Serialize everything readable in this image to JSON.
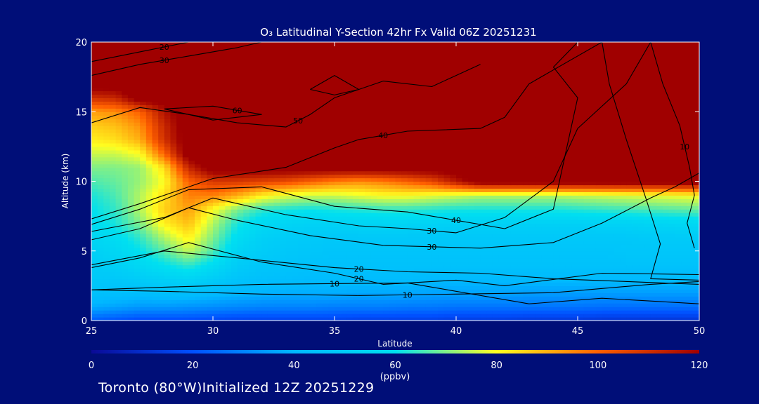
{
  "chart_data": {
    "type": "heatmap",
    "title": "O₃ Latitudinal Y-Section 42hr  Fx Valid 06Z 20251231",
    "xlabel": "Latitude",
    "ylabel": "Altitude (km)",
    "xlim": [
      25,
      50
    ],
    "ylim": [
      0,
      20
    ],
    "x_ticks": [
      "25",
      "30",
      "35",
      "40",
      "45",
      "50"
    ],
    "y_ticks": [
      "0",
      "5",
      "10",
      "15",
      "20"
    ],
    "colorbar": {
      "unit": "(ppbv)",
      "range": [
        0,
        120
      ],
      "ticks": [
        "0",
        "20",
        "40",
        "60",
        "80",
        "100",
        "120"
      ],
      "colors": [
        "#0a0a96",
        "#0050ff",
        "#00b8ff",
        "#00e0f0",
        "#ffff20",
        "#ff6000",
        "#a00000"
      ]
    },
    "altitude_km": [
      0,
      1,
      2,
      3,
      4,
      5,
      6,
      7,
      8,
      9,
      10,
      11,
      12,
      13,
      14,
      15,
      16,
      17,
      18,
      19,
      20
    ],
    "latitude": [
      25,
      26,
      27,
      28,
      29,
      30,
      31,
      32,
      33,
      34,
      35,
      36,
      37,
      38,
      39,
      40,
      41,
      42,
      43,
      44,
      45,
      46,
      47,
      48,
      49,
      50
    ],
    "ozone_ppbv": [
      [
        22,
        20,
        18,
        18,
        18,
        17,
        16,
        16,
        16,
        16,
        16,
        15,
        15,
        15,
        15,
        14,
        14,
        14,
        13,
        13,
        13,
        12,
        12,
        12,
        12,
        12
      ],
      [
        38,
        36,
        34,
        34,
        33,
        32,
        31,
        30,
        30,
        30,
        29,
        29,
        29,
        28,
        28,
        27,
        27,
        27,
        27,
        27,
        27,
        26,
        26,
        26,
        26,
        26
      ],
      [
        45,
        44,
        43,
        44,
        44,
        42,
        40,
        39,
        38,
        38,
        38,
        37,
        37,
        37,
        36,
        36,
        36,
        36,
        35,
        35,
        35,
        35,
        35,
        35,
        35,
        35
      ],
      [
        48,
        48,
        50,
        52,
        54,
        50,
        46,
        44,
        43,
        42,
        42,
        42,
        42,
        42,
        41,
        41,
        41,
        41,
        41,
        41,
        41,
        41,
        41,
        41,
        41,
        41
      ],
      [
        50,
        52,
        56,
        60,
        64,
        58,
        50,
        47,
        46,
        45,
        45,
        45,
        45,
        45,
        45,
        45,
        45,
        45,
        45,
        45,
        45,
        45,
        45,
        45,
        45,
        45
      ],
      [
        52,
        55,
        60,
        67,
        75,
        66,
        54,
        50,
        48,
        47,
        46,
        46,
        46,
        46,
        46,
        46,
        46,
        46,
        46,
        46,
        46,
        46,
        47,
        47,
        47,
        47
      ],
      [
        55,
        58,
        64,
        74,
        82,
        70,
        58,
        52,
        50,
        49,
        48,
        48,
        48,
        48,
        48,
        48,
        48,
        48,
        48,
        48,
        48,
        48,
        48,
        49,
        49,
        50
      ],
      [
        58,
        62,
        70,
        82,
        88,
        74,
        62,
        56,
        54,
        53,
        53,
        54,
        54,
        54,
        53,
        52,
        52,
        52,
        52,
        52,
        52,
        53,
        53,
        54,
        55,
        56
      ],
      [
        60,
        64,
        74,
        86,
        92,
        80,
        70,
        64,
        62,
        61,
        62,
        63,
        64,
        64,
        63,
        62,
        62,
        62,
        62,
        62,
        63,
        64,
        65,
        66,
        67,
        68
      ],
      [
        62,
        66,
        74,
        84,
        96,
        96,
        90,
        82,
        78,
        76,
        76,
        78,
        80,
        80,
        78,
        76,
        74,
        74,
        74,
        74,
        75,
        76,
        77,
        78,
        79,
        80
      ],
      [
        66,
        68,
        72,
        80,
        100,
        108,
        108,
        106,
        104,
        100,
        96,
        94,
        96,
        100,
        105,
        115,
        125,
        125,
        125,
        125,
        125,
        125,
        125,
        125,
        125,
        125
      ],
      [
        70,
        70,
        72,
        84,
        112,
        125,
        125,
        125,
        125,
        125,
        125,
        125,
        125,
        125,
        125,
        125,
        125,
        125,
        125,
        125,
        125,
        125,
        125,
        125,
        125,
        125
      ],
      [
        76,
        76,
        80,
        100,
        125,
        125,
        125,
        125,
        125,
        125,
        125,
        125,
        125,
        125,
        125,
        125,
        125,
        125,
        125,
        125,
        125,
        125,
        125,
        125,
        125,
        125
      ],
      [
        82,
        84,
        90,
        110,
        125,
        125,
        125,
        125,
        125,
        125,
        125,
        125,
        125,
        125,
        125,
        125,
        125,
        125,
        125,
        125,
        125,
        125,
        125,
        125,
        125,
        125
      ],
      [
        86,
        88,
        94,
        112,
        125,
        125,
        125,
        125,
        125,
        125,
        125,
        125,
        125,
        125,
        125,
        125,
        125,
        125,
        125,
        125,
        125,
        125,
        125,
        125,
        125,
        125
      ],
      [
        92,
        94,
        100,
        116,
        125,
        125,
        125,
        125,
        125,
        125,
        125,
        125,
        125,
        125,
        125,
        125,
        125,
        125,
        125,
        125,
        125,
        125,
        125,
        125,
        125,
        125
      ],
      [
        110,
        112,
        125,
        125,
        125,
        125,
        125,
        125,
        125,
        125,
        125,
        125,
        125,
        125,
        125,
        125,
        125,
        125,
        125,
        125,
        125,
        125,
        125,
        125,
        125,
        125
      ],
      [
        125,
        125,
        125,
        125,
        125,
        125,
        125,
        125,
        125,
        125,
        125,
        125,
        125,
        125,
        125,
        125,
        125,
        125,
        125,
        125,
        125,
        125,
        125,
        125,
        125,
        125
      ],
      [
        125,
        125,
        125,
        125,
        125,
        125,
        125,
        125,
        125,
        125,
        125,
        125,
        125,
        125,
        125,
        125,
        125,
        125,
        125,
        125,
        125,
        125,
        125,
        125,
        125,
        125
      ],
      [
        125,
        125,
        125,
        125,
        125,
        125,
        125,
        125,
        125,
        125,
        125,
        125,
        125,
        125,
        125,
        125,
        125,
        125,
        125,
        125,
        125,
        125,
        125,
        125,
        125,
        125
      ],
      [
        125,
        125,
        125,
        125,
        125,
        125,
        125,
        125,
        125,
        125,
        125,
        125,
        125,
        125,
        125,
        125,
        125,
        125,
        125,
        125,
        125,
        125,
        125,
        125,
        125,
        125
      ]
    ],
    "contours": [
      {
        "label": "10",
        "points": [
          [
            25,
            2.2
          ],
          [
            28,
            2.1
          ],
          [
            32,
            1.9
          ],
          [
            36,
            1.8
          ],
          [
            40,
            1.9
          ],
          [
            44,
            2.0
          ],
          [
            48,
            2.6
          ],
          [
            50,
            2.8
          ]
        ]
      },
      {
        "label": "10",
        "points": [
          [
            25,
            2.2
          ],
          [
            28,
            2.4
          ],
          [
            32,
            2.6
          ],
          [
            38,
            2.7
          ],
          [
            43,
            1.2
          ],
          [
            46,
            1.6
          ],
          [
            50,
            1.2
          ]
        ]
      },
      {
        "label": "20",
        "points": [
          [
            25,
            3.8
          ],
          [
            27,
            4.5
          ],
          [
            29,
            5.6
          ],
          [
            32,
            4.2
          ],
          [
            35,
            3.4
          ],
          [
            37,
            2.6
          ],
          [
            40,
            2.9
          ],
          [
            42,
            2.5
          ],
          [
            46,
            3.4
          ],
          [
            50,
            3.3
          ]
        ]
      },
      {
        "label": "20",
        "points": [
          [
            25,
            4.0
          ],
          [
            28,
            5.0
          ],
          [
            31,
            4.5
          ],
          [
            35,
            3.8
          ],
          [
            37,
            3.6
          ],
          [
            38,
            3.5
          ],
          [
            41,
            3.4
          ],
          [
            44,
            3.0
          ],
          [
            50,
            2.6
          ]
        ]
      },
      {
        "label": "30",
        "points": [
          [
            25,
            5.8
          ],
          [
            27,
            6.6
          ],
          [
            29,
            8.1
          ],
          [
            31,
            7.2
          ],
          [
            34,
            6.1
          ],
          [
            37,
            5.4
          ],
          [
            41,
            5.2
          ],
          [
            44,
            5.6
          ],
          [
            46,
            7.0
          ],
          [
            48,
            8.8
          ],
          [
            49,
            9.6
          ],
          [
            50,
            10.6
          ]
        ]
      },
      {
        "label": "30",
        "points": [
          [
            25,
            6.4
          ],
          [
            28,
            7.4
          ],
          [
            30,
            8.8
          ],
          [
            33,
            7.6
          ],
          [
            36,
            6.8
          ],
          [
            38,
            6.6
          ],
          [
            40,
            6.3
          ],
          [
            42,
            7.4
          ],
          [
            44,
            10.0
          ],
          [
            45,
            13.8
          ],
          [
            47,
            17.0
          ],
          [
            48,
            20.0
          ]
        ]
      },
      {
        "label": "40",
        "points": [
          [
            25,
            6.9
          ],
          [
            27,
            8.0
          ],
          [
            29,
            9.4
          ],
          [
            32,
            9.6
          ],
          [
            35,
            8.2
          ],
          [
            38,
            7.8
          ],
          [
            42,
            6.6
          ],
          [
            44,
            8.0
          ],
          [
            44.5,
            12.0
          ],
          [
            45,
            16.0
          ],
          [
            44,
            18.2
          ],
          [
            45,
            20.0
          ]
        ]
      },
      {
        "label": "40",
        "points": [
          [
            25,
            7.3
          ],
          [
            27,
            8.4
          ],
          [
            30,
            10.2
          ],
          [
            33,
            11.0
          ],
          [
            35,
            12.4
          ],
          [
            36,
            13.0
          ],
          [
            38,
            13.6
          ],
          [
            41,
            13.8
          ],
          [
            42,
            14.6
          ],
          [
            43,
            17.0
          ],
          [
            44,
            18.0
          ],
          [
            46,
            20.0
          ]
        ]
      },
      {
        "label": "50",
        "points": [
          [
            25,
            14.2
          ],
          [
            27,
            15.3
          ],
          [
            29,
            14.8
          ],
          [
            31,
            14.2
          ],
          [
            33,
            13.9
          ],
          [
            34,
            14.8
          ],
          [
            35,
            16.0
          ],
          [
            37,
            17.2
          ],
          [
            39,
            16.8
          ],
          [
            40,
            17.6
          ],
          [
            41,
            18.4
          ]
        ]
      },
      {
        "label": "60",
        "points": [
          [
            28,
            15.2
          ],
          [
            30,
            15.4
          ],
          [
            32,
            14.8
          ],
          [
            30,
            14.4
          ],
          [
            28,
            15.2
          ]
        ]
      },
      {
        "label": "",
        "points": [
          [
            34,
            16.6
          ],
          [
            35,
            17.6
          ],
          [
            36,
            16.6
          ],
          [
            35,
            16.2
          ],
          [
            34,
            16.6
          ]
        ]
      },
      {
        "label": "30",
        "points": [
          [
            25,
            17.6
          ],
          [
            27,
            18.4
          ],
          [
            29,
            19.0
          ],
          [
            31,
            19.6
          ],
          [
            32,
            20.0
          ]
        ]
      },
      {
        "label": "20",
        "points": [
          [
            25,
            18.6
          ],
          [
            27,
            19.3
          ],
          [
            29,
            20.0
          ]
        ]
      },
      {
        "label": "10",
        "points": [
          [
            48,
            20.0
          ],
          [
            48.5,
            17.0
          ],
          [
            49.2,
            14.0
          ],
          [
            49.6,
            11.0
          ],
          [
            49.8,
            9.0
          ],
          [
            49.5,
            7.0
          ],
          [
            49.8,
            5.2
          ]
        ]
      },
      {
        "label": "",
        "points": [
          [
            46,
            20.0
          ],
          [
            46.3,
            17.0
          ],
          [
            47.0,
            13.0
          ],
          [
            47.8,
            8.8
          ],
          [
            48.4,
            5.5
          ],
          [
            48.0,
            3.0
          ],
          [
            50,
            2.9
          ]
        ]
      }
    ]
  },
  "footer": {
    "station": "Toronto (80°W)",
    "init": "Initialized 12Z 20251229"
  }
}
